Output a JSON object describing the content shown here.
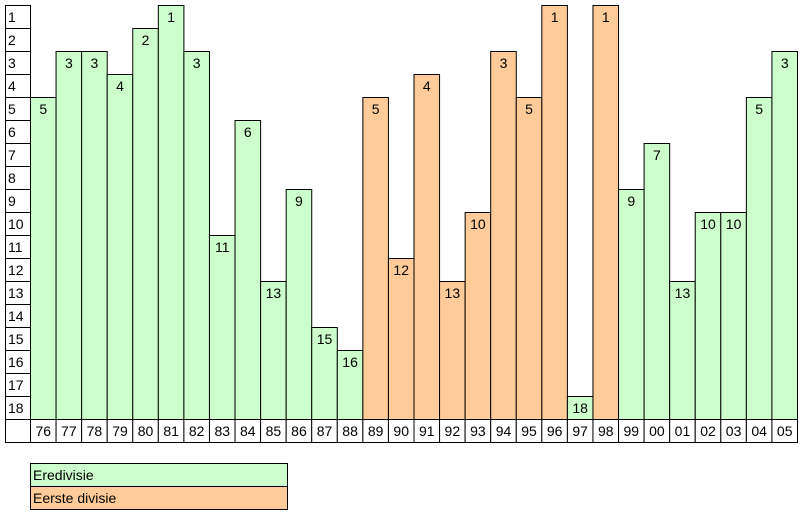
{
  "chart_data": {
    "type": "bar",
    "title": "",
    "xlabel": "",
    "ylabel": "",
    "ylim": [
      1,
      18
    ],
    "y_inverted": true,
    "y_ticks": [
      "1",
      "2",
      "3",
      "4",
      "5",
      "6",
      "7",
      "8",
      "9",
      "10",
      "11",
      "12",
      "13",
      "14",
      "15",
      "16",
      "17",
      "18"
    ],
    "categories": [
      "76",
      "77",
      "78",
      "79",
      "80",
      "81",
      "82",
      "83",
      "84",
      "85",
      "86",
      "87",
      "88",
      "89",
      "90",
      "91",
      "92",
      "93",
      "94",
      "95",
      "96",
      "97",
      "98",
      "99",
      "00",
      "01",
      "02",
      "03",
      "04",
      "05"
    ],
    "values": [
      5,
      3,
      3,
      4,
      2,
      1,
      3,
      11,
      6,
      13,
      9,
      15,
      16,
      5,
      12,
      4,
      13,
      10,
      3,
      5,
      1,
      18,
      1,
      9,
      7,
      13,
      10,
      10,
      5,
      3
    ],
    "league": [
      "E",
      "E",
      "E",
      "E",
      "E",
      "E",
      "E",
      "E",
      "E",
      "E",
      "E",
      "E",
      "E",
      "D",
      "D",
      "D",
      "D",
      "D",
      "D",
      "D",
      "D",
      "E",
      "D",
      "E",
      "E",
      "E",
      "E",
      "E",
      "E",
      "E"
    ],
    "legend": [
      {
        "key": "E",
        "label": "Eredivisie",
        "color": "#ccffcc"
      },
      {
        "key": "D",
        "label": "Eerste divisie",
        "color": "#ffcc99"
      }
    ],
    "legend_position": "bottom-left",
    "grid": false
  }
}
